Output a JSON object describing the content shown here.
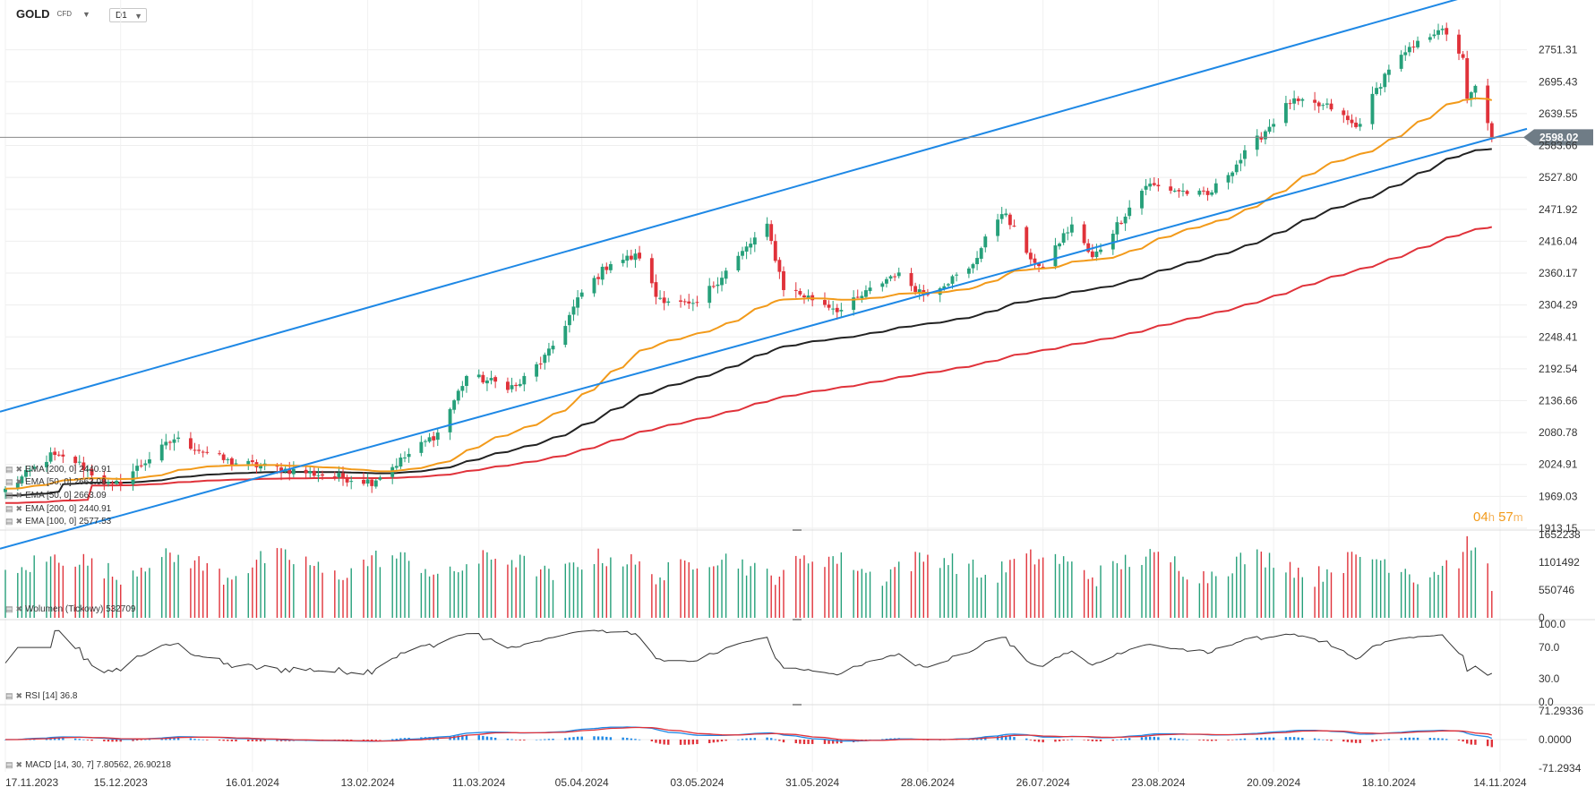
{
  "instrument": {
    "symbol": "GOLD",
    "type": "CFD",
    "timeframe": "D1"
  },
  "countdown": {
    "hours": "04",
    "h_unit": "h",
    "minutes": "57",
    "m_unit": "m"
  },
  "legends": {
    "ema200": "EMA [200, 0] 2440.91",
    "ema50": "EMA [50, 0] 2663.09",
    "ema50b": "EMA [50, 0] 2663.09",
    "ema200b": "EMA [200, 0] 2440.91",
    "ema100": "EMA [100, 0] 2577.53",
    "volume": "Wolumen (Tickowy) 532709",
    "rsi": "RSI [14] 36.8",
    "macd": "MACD [14, 30, 7] 7.80562, 26.90218"
  },
  "colors": {
    "up": "#26a07a",
    "down": "#e0323a",
    "ema50": "#f29a1a",
    "ema100": "#222222",
    "ema200": "#e0323a",
    "channel": "#1e88e5",
    "macd": "#1e88e5",
    "signal": "#e0323a",
    "price_line": "#888888"
  },
  "chart_data": {
    "type": "candlestick",
    "price_axis": {
      "ticks": [
        "2751.31",
        "2695.43",
        "2639.55",
        "2583.66",
        "2527.80",
        "2471.92",
        "2416.04",
        "2360.17",
        "2304.29",
        "2248.41",
        "2192.54",
        "2136.66",
        "2080.78",
        "2024.91",
        "1969.03",
        "1913.15"
      ],
      "range": [
        1913.15,
        2807.2
      ],
      "current_price": "2598.02"
    },
    "date_axis": [
      "17.11.2023",
      "15.12.2023",
      "16.01.2024",
      "13.02.2024",
      "11.03.2024",
      "05.04.2024",
      "03.05.2024",
      "31.05.2024",
      "28.06.2024",
      "26.07.2024",
      "23.08.2024",
      "20.09.2024",
      "18.10.2024",
      "14.11.2024"
    ],
    "anchors": [
      {
        "date": "17.11.2023",
        "close": 1980
      },
      {
        "date": "28.11.2023",
        "close": 2040
      },
      {
        "date": "04.12.2023",
        "close": 2030
      },
      {
        "date": "13.12.2023",
        "close": 1985
      },
      {
        "date": "28.12.2023",
        "close": 2070
      },
      {
        "date": "10.01.2024",
        "close": 2030
      },
      {
        "date": "14.02.2024",
        "close": 1995
      },
      {
        "date": "01.03.2024",
        "close": 2080
      },
      {
        "date": "08.03.2024",
        "close": 2180
      },
      {
        "date": "20.03.2024",
        "close": 2160
      },
      {
        "date": "28.03.2024",
        "close": 2220
      },
      {
        "date": "05.04.2024",
        "close": 2325
      },
      {
        "date": "12.04.2024",
        "close": 2380
      },
      {
        "date": "19.04.2024",
        "close": 2390
      },
      {
        "date": "23.04.2024",
        "close": 2320
      },
      {
        "date": "02.05.2024",
        "close": 2300
      },
      {
        "date": "17.05.2024",
        "close": 2420
      },
      {
        "date": "20.05.2024",
        "close": 2440
      },
      {
        "date": "24.05.2024",
        "close": 2335
      },
      {
        "date": "07.06.2024",
        "close": 2295
      },
      {
        "date": "20.06.2024",
        "close": 2360
      },
      {
        "date": "27.06.2024",
        "close": 2325
      },
      {
        "date": "08.07.2024",
        "close": 2365
      },
      {
        "date": "16.07.2024",
        "close": 2470
      },
      {
        "date": "25.07.2024",
        "close": 2365
      },
      {
        "date": "02.08.2024",
        "close": 2445
      },
      {
        "date": "07.08.2024",
        "close": 2385
      },
      {
        "date": "20.08.2024",
        "close": 2515
      },
      {
        "date": "04.09.2024",
        "close": 2495
      },
      {
        "date": "12.09.2024",
        "close": 2560
      },
      {
        "date": "24.09.2024",
        "close": 2660
      },
      {
        "date": "04.10.2024",
        "close": 2650
      },
      {
        "date": "10.10.2024",
        "close": 2615
      },
      {
        "date": "18.10.2024",
        "close": 2720
      },
      {
        "date": "30.10.2024",
        "close": 2790
      },
      {
        "date": "05.11.2024",
        "close": 2740
      },
      {
        "date": "06.11.2024",
        "close": 2660
      },
      {
        "date": "08.11.2024",
        "close": 2685
      },
      {
        "date": "12.11.2024",
        "close": 2598
      }
    ],
    "ema_last": {
      "ema50": 2663.09,
      "ema100": 2577.53,
      "ema200": 2440.91
    },
    "channel": {
      "upper": [
        {
          "date": "17.11.2023",
          "price": 2120
        },
        {
          "date": "11.11.2024",
          "price": 2855
        }
      ],
      "lower": [
        {
          "date": "17.11.2023",
          "price": 1880
        },
        {
          "date": "14.11.2024",
          "price": 2600
        }
      ]
    },
    "volume": {
      "ticks": [
        "1652238",
        "1101492",
        "550746",
        "0"
      ],
      "last": 532709
    },
    "rsi": {
      "ticks": [
        "100.0",
        "70.0",
        "30.0",
        "0.0"
      ],
      "last": 36.8
    },
    "macd": {
      "ticks": [
        "71.29336",
        "0.0000",
        "-71.2934"
      ],
      "macd_last": 7.80562,
      "signal_last": 26.90218
    }
  }
}
